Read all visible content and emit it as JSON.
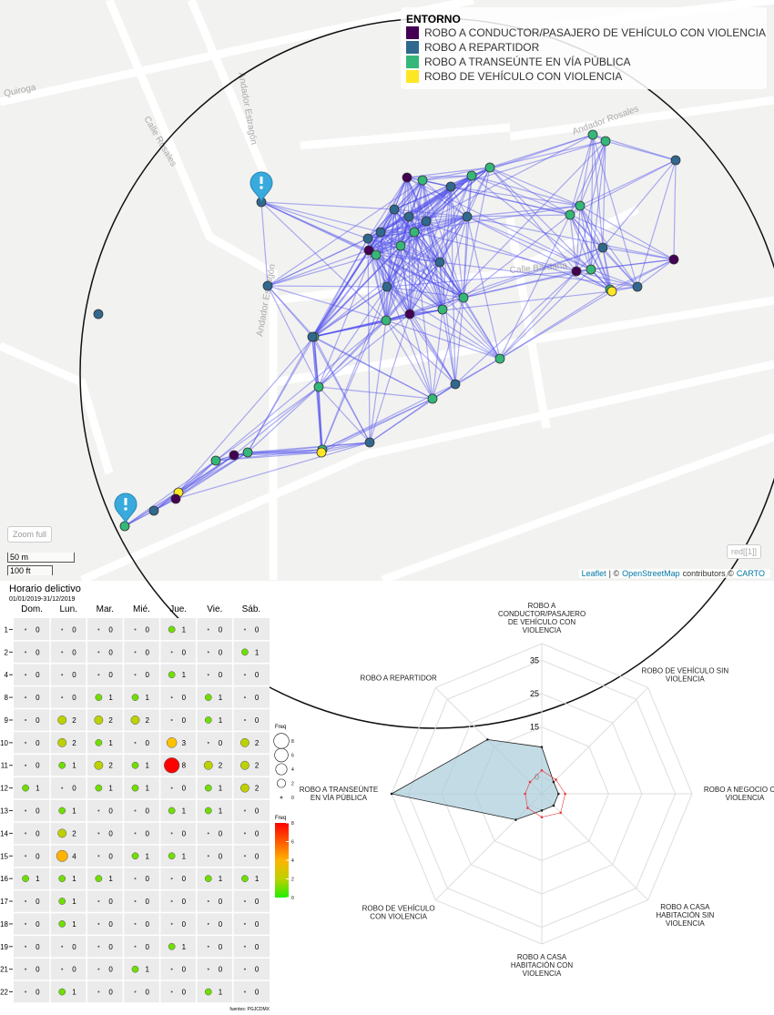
{
  "map": {
    "legend": {
      "title": "ENTORNO",
      "items": [
        {
          "label": "ROBO A CONDUCTOR/PASAJERO DE VEHÍCULO CON VIOLENCIA",
          "color": "#440154"
        },
        {
          "label": "ROBO A REPARTIDOR",
          "color": "#31688e"
        },
        {
          "label": "ROBO A TRANSEÚNTE EN VÍA PÚBLICA",
          "color": "#35b779"
        },
        {
          "label": "ROBO DE VEHÍCULO CON VIOLENCIA",
          "color": "#fde725"
        }
      ]
    },
    "street_labels": [
      "Quiroga",
      "Calle Rosales",
      "Andador Estragón",
      "Andador Rosales",
      "Calle Bardana",
      "Andador Estragón"
    ],
    "zoom_button": "Zoom full",
    "scale": [
      "50 m",
      "100 ft"
    ],
    "layer_button": "red[[1]]",
    "attribution": [
      "Leaflet",
      "| ©",
      "OpenStreetMap",
      "contributors ©",
      "CARTO"
    ]
  },
  "chart_data": [
    {
      "type": "bubble-grid",
      "title": "Horario delictivo",
      "subtitle": "01/01/2019-31/12/2019",
      "columns": [
        "Dom.",
        "Lun.",
        "Mar.",
        "Mié.",
        "Jue.",
        "Vie.",
        "Sáb."
      ],
      "rows": [
        "1",
        "2",
        "4",
        "8",
        "9",
        "10",
        "11",
        "12",
        "13",
        "14",
        "15",
        "16",
        "17",
        "18",
        "19",
        "21",
        "22"
      ],
      "values": [
        [
          0,
          0,
          0,
          0,
          1,
          0,
          0
        ],
        [
          0,
          0,
          0,
          0,
          0,
          0,
          1
        ],
        [
          0,
          0,
          0,
          0,
          1,
          0,
          0
        ],
        [
          0,
          0,
          1,
          1,
          0,
          1,
          0
        ],
        [
          0,
          2,
          2,
          2,
          0,
          1,
          0
        ],
        [
          0,
          2,
          1,
          0,
          3,
          0,
          2
        ],
        [
          0,
          1,
          2,
          1,
          8,
          2,
          2
        ],
        [
          1,
          0,
          1,
          1,
          0,
          1,
          2
        ],
        [
          0,
          1,
          0,
          0,
          1,
          1,
          0
        ],
        [
          0,
          2,
          0,
          0,
          0,
          0,
          0
        ],
        [
          0,
          4,
          0,
          1,
          1,
          0,
          0
        ],
        [
          1,
          1,
          1,
          0,
          0,
          1,
          1
        ],
        [
          0,
          1,
          0,
          0,
          0,
          0,
          0
        ],
        [
          0,
          1,
          0,
          0,
          0,
          0,
          0
        ],
        [
          0,
          0,
          0,
          0,
          1,
          0,
          0
        ],
        [
          0,
          0,
          0,
          1,
          0,
          0,
          0
        ],
        [
          0,
          1,
          0,
          0,
          0,
          1,
          0
        ]
      ],
      "size_legend": {
        "title": "Freq",
        "values": [
          8,
          6,
          4,
          2,
          0
        ]
      },
      "color_legend": {
        "title": "Freq",
        "ticks": [
          8,
          6,
          4,
          2,
          0
        ]
      },
      "colors": [
        "#22ee00",
        "#ff0000"
      ],
      "source": "fuentes: PGJCDMX"
    },
    {
      "type": "radar",
      "categories": [
        "ROBO A CONDUCTOR/PASAJERO DE VEHÍCULO CON VIOLENCIA",
        "ROBO DE VEHÍCULO SIN VIOLENCIA",
        "ROBO A NEGOCIO CON VIOLENCIA",
        "ROBO A CASA HABITACIÓN SIN VIOLENCIA",
        "ROBO A CASA HABITACIÓN CON VIOLENCIA",
        "ROBO DE VEHÍCULO CON VIOLENCIA",
        "ROBO A TRANSEÚNTE EN VÍA PÚBLICA",
        "ROBO A REPARTIDOR"
      ],
      "ylim": [
        -5,
        40
      ],
      "yticks": [
        0,
        15,
        25,
        35
      ],
      "series": [
        {
          "color": "#a9ccda",
          "values": [
            9,
            0,
            0,
            0,
            0,
            6,
            40,
            18
          ]
        },
        {
          "color": "#e8383d",
          "values": [
            2,
            1,
            2,
            3,
            2,
            1,
            0,
            0
          ]
        }
      ]
    }
  ]
}
